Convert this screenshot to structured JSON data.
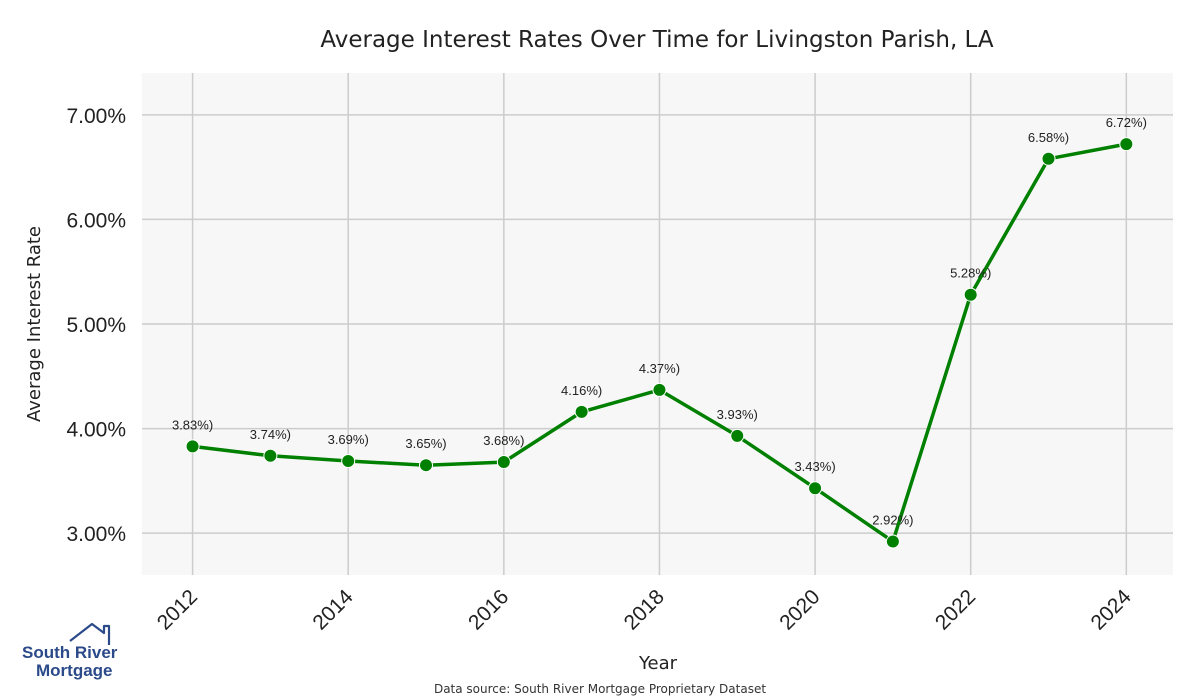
{
  "chart_data": {
    "type": "line",
    "title": "Average Interest Rates Over Time for Livingston Parish, LA",
    "xlabel": "Year",
    "ylabel": "Average Interest Rate",
    "xlim": [
      2011.35,
      2024.6
    ],
    "ylim": [
      2.6,
      7.4
    ],
    "grid": true,
    "x": [
      2012,
      2013,
      2014,
      2015,
      2016,
      2017,
      2018,
      2019,
      2020,
      2021,
      2022,
      2023,
      2024
    ],
    "series": [
      {
        "name": "Average Interest Rate",
        "color": "#008000",
        "values": [
          3.83,
          3.74,
          3.69,
          3.65,
          3.68,
          4.16,
          4.37,
          3.93,
          3.43,
          2.92,
          5.28,
          6.58,
          6.72
        ],
        "labels": [
          "3.83%)",
          "3.74%)",
          "3.69%)",
          "3.65%)",
          "3.68%)",
          "4.16%)",
          "4.37%)",
          "3.93%)",
          "3.43%)",
          "2.92%)",
          "5.28%)",
          "6.58%)",
          "6.72%)"
        ]
      }
    ],
    "yticks": [
      3,
      4,
      5,
      6,
      7
    ],
    "ytick_labels": [
      "3.00%",
      "4.00%",
      "5.00%",
      "6.00%",
      "7.00%"
    ],
    "xticks": [
      2012,
      2014,
      2016,
      2018,
      2020,
      2022,
      2024
    ],
    "xtick_labels": [
      "2012",
      "2014",
      "2016",
      "2018",
      "2020",
      "2022",
      "2024"
    ],
    "plot_background": "#f7f7f7",
    "grid_color": "#cccccc"
  },
  "source_note": "Data source: South River Mortgage Proprietary Dataset",
  "logo": {
    "line1": "South River",
    "line2": "Mortgage",
    "color": "#2b4a8a"
  }
}
